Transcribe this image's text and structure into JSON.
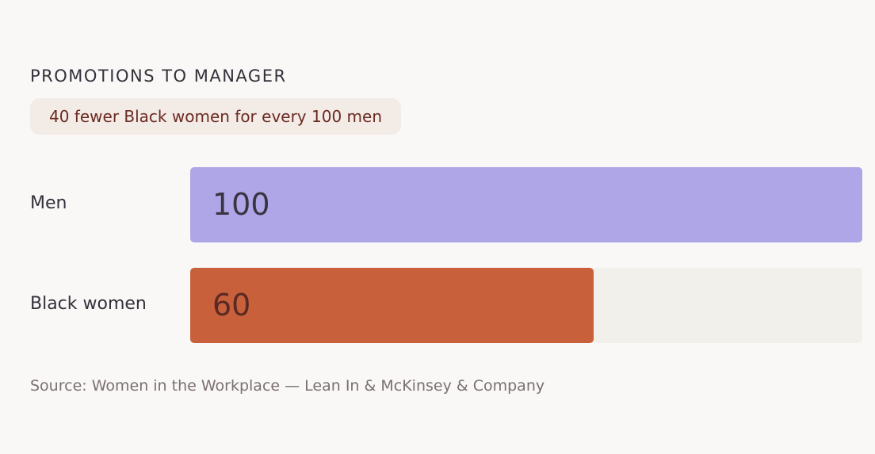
{
  "chart_data": {
    "type": "bar",
    "orientation": "horizontal",
    "title": "PROMOTIONS TO MANAGER",
    "subtitle": "40 fewer Black women for every 100 men",
    "categories": [
      "Men",
      "Black women"
    ],
    "values": [
      100,
      60
    ],
    "colors": [
      "#aea6e6",
      "#c8603c"
    ],
    "xlim": [
      0,
      100
    ],
    "source": "Source: Women in the Workplace — Lean In & McKinsey & Company"
  }
}
